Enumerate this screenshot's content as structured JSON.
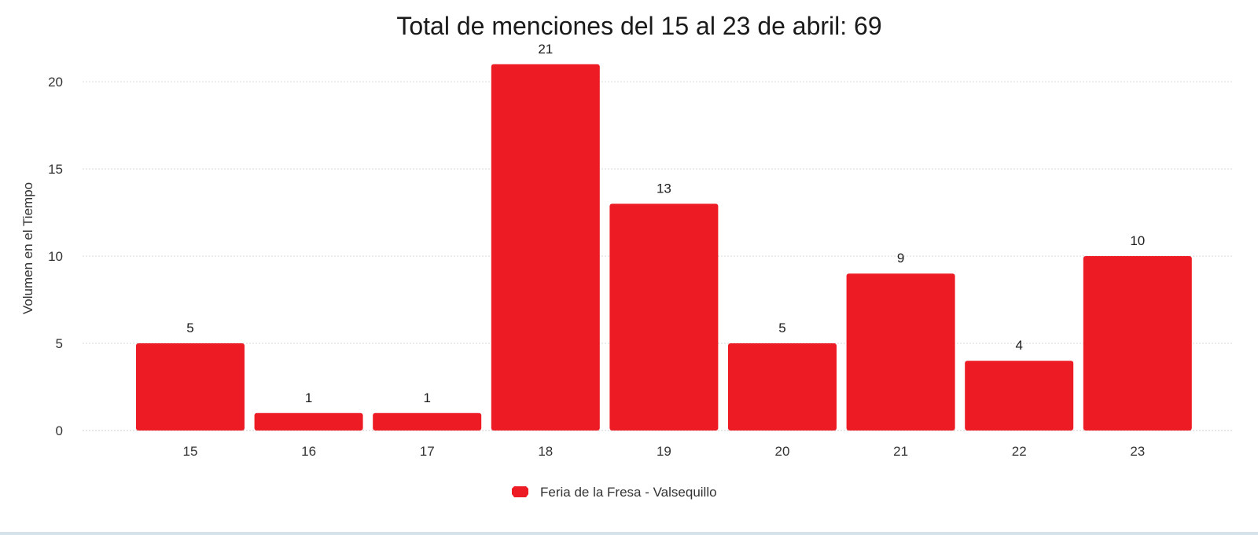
{
  "chart_data": {
    "type": "bar",
    "title": "Total de menciones del 15 al 23 de abril: 69",
    "xlabel": "",
    "ylabel": "Volumen en el Tiempo",
    "categories": [
      "15",
      "16",
      "17",
      "18",
      "19",
      "20",
      "21",
      "22",
      "23"
    ],
    "series": [
      {
        "name": "Feria de la Fresa - Valsequillo",
        "values": [
          5,
          1,
          1,
          21,
          13,
          5,
          9,
          4,
          10
        ],
        "color": "#ed1c24"
      }
    ],
    "ylim": [
      0,
      22
    ],
    "yticks": [
      0,
      5,
      10,
      15,
      20
    ],
    "grid": true,
    "legend_position": "bottom-center",
    "data_labels": true
  }
}
